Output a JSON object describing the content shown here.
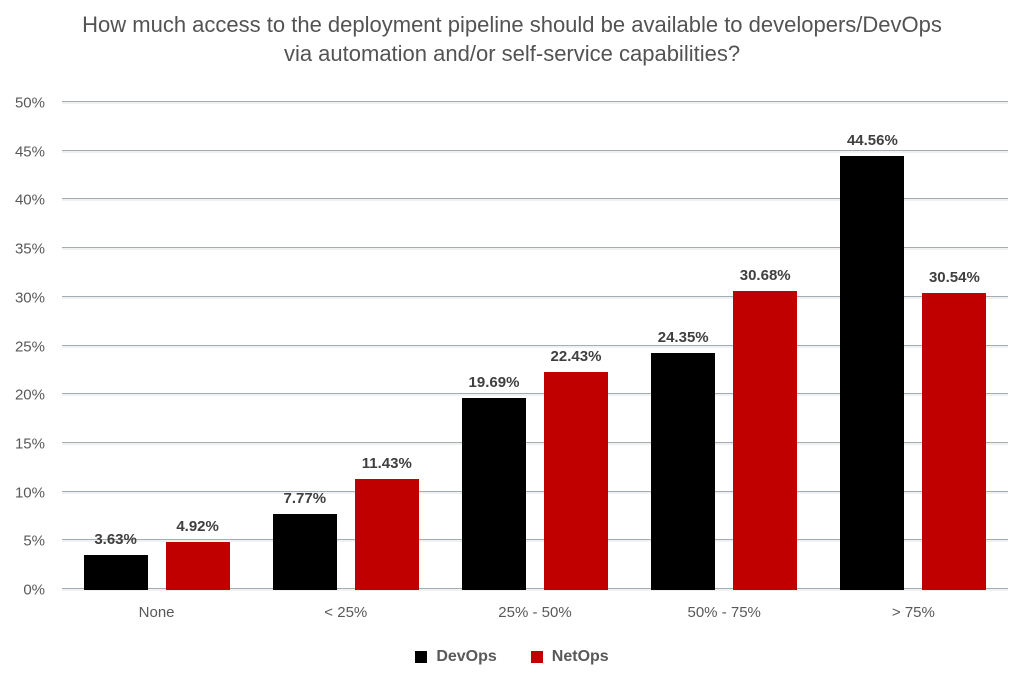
{
  "page": {
    "background": "#ffffff"
  },
  "chart_data": {
    "type": "bar",
    "title": "How much access to the deployment pipeline should be available to developers/DevOps via automation and/or self-service capabilities?",
    "categories": [
      "None",
      "< 25%",
      "25% - 50%",
      "50% - 75%",
      "> 75%"
    ],
    "series": [
      {
        "name": "DevOps",
        "color": "#000000",
        "values": [
          3.63,
          7.77,
          19.69,
          24.35,
          44.56
        ],
        "labels": [
          "3.63%",
          "7.77%",
          "19.69%",
          "24.35%",
          "44.56%"
        ]
      },
      {
        "name": "NetOps",
        "color": "#c00000",
        "values": [
          4.92,
          11.43,
          22.43,
          30.68,
          30.54
        ],
        "labels": [
          "4.92%",
          "11.43%",
          "22.43%",
          "30.68%",
          "30.54%"
        ]
      }
    ],
    "xlabel": "",
    "ylabel": "",
    "ylim": [
      0,
      50
    ],
    "ytick_step": 5,
    "ytick_labels": [
      "0%",
      "5%",
      "10%",
      "15%",
      "20%",
      "25%",
      "30%",
      "35%",
      "40%",
      "45%",
      "50%"
    ],
    "grid": "horizontal",
    "legend_position": "bottom",
    "colors": {
      "title_text": "#535353",
      "axis_text": "#595959",
      "data_label_text": "#3f3f3f",
      "gridline_edge": "#a4aeb2",
      "gridline_fill": "#f1f1f1"
    }
  }
}
